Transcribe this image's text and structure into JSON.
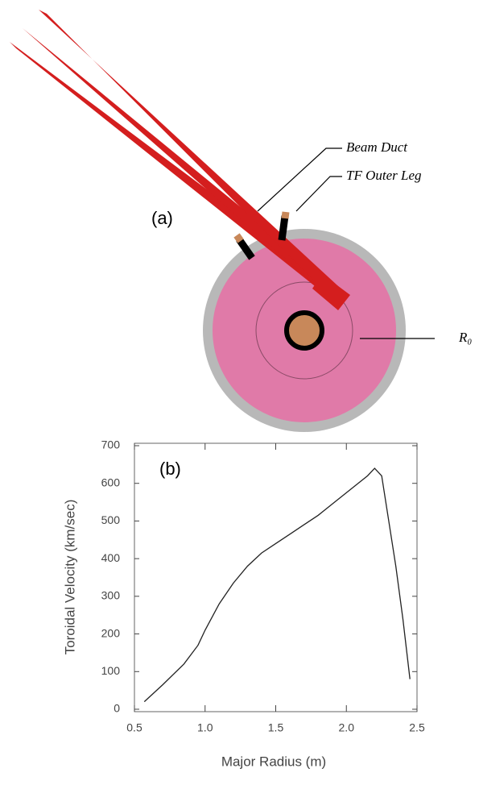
{
  "diagram": {
    "panel_label": "(a)",
    "labels": [
      "Beam Duct",
      "TF Outer Leg",
      "R₀"
    ]
  },
  "chart_data": {
    "type": "line",
    "annotation": "(b)",
    "x_label": "Major Radius (m)",
    "y_label": "Toroidal Velocity (km/sec)",
    "xlim": [
      0.5,
      2.5
    ],
    "ylim": [
      0,
      700
    ],
    "xticks": [
      0.5,
      {
        "value": 1,
        "label": "1.0"
      },
      1.5,
      {
        "value": 2,
        "label": "2.0"
      },
      2.5
    ],
    "yticks": [
      0,
      100,
      200,
      300,
      400,
      500,
      600,
      700
    ],
    "series": [
      {
        "color": "#222222",
        "x": [
          0.57,
          0.7,
          0.85,
          0.95,
          1.0,
          1.1,
          1.2,
          1.3,
          1.4,
          1.5,
          1.6,
          1.7,
          1.8,
          1.9,
          2.0,
          2.1,
          2.15,
          2.2,
          2.25,
          2.3,
          2.35,
          2.4,
          2.45
        ],
        "values": [
          20,
          65,
          120,
          170,
          210,
          280,
          335,
          380,
          415,
          440,
          465,
          490,
          515,
          545,
          575,
          605,
          620,
          640,
          620,
          500,
          380,
          240,
          80
        ]
      }
    ]
  }
}
